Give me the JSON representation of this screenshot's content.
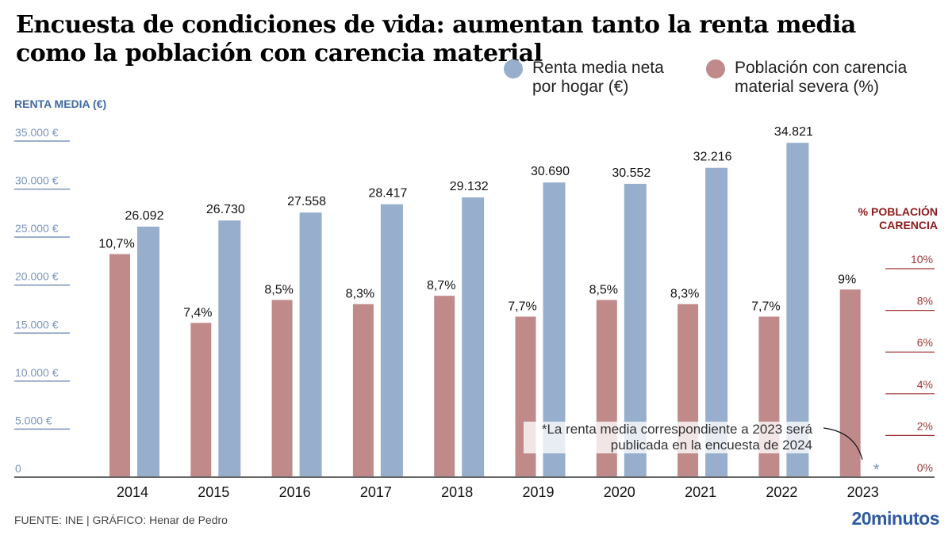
{
  "title": "Encuesta de condiciones de vida: aumentan tanto la renta media como la población con carencia material",
  "legend": [
    {
      "label_line1": "Renta media neta",
      "label_line2": "por hogar (€)",
      "color": "#97afcc"
    },
    {
      "label_line1": "Población con carencia",
      "label_line2": "material severa (%)",
      "color": "#c08a8b"
    }
  ],
  "axis_left_title": "RENTA MEDIA (€)",
  "axis_right_title_line1": "% POBLACIÓN",
  "axis_right_title_line2": "CARENCIA",
  "note": "*La renta media correspondiente a 2023 será publicada en la encuesta de 2024",
  "note_marker": "*",
  "footer": "FUENTE: INE  |  GRÁFICO: Henar de Pedro",
  "brand": "20minutos",
  "chart_data": {
    "type": "bar",
    "title": "Encuesta de condiciones de vida: aumentan tanto la renta media como la población con carencia material",
    "categories": [
      "2014",
      "2015",
      "2016",
      "2017",
      "2018",
      "2019",
      "2020",
      "2021",
      "2022",
      "2023"
    ],
    "series": [
      {
        "name": "Población con carencia material severa (%)",
        "axis": "right",
        "color": "#c08a8b",
        "values": [
          10.7,
          7.4,
          8.5,
          8.3,
          8.7,
          7.7,
          8.5,
          8.3,
          7.7,
          9
        ],
        "labels": [
          "10,7%",
          "7,4%",
          "8,5%",
          "8,3%",
          "8,7%",
          "7,7%",
          "8,5%",
          "8,3%",
          "7,7%",
          "9%"
        ]
      },
      {
        "name": "Renta media neta por hogar (€)",
        "axis": "left",
        "color": "#97afcc",
        "values": [
          26092,
          26730,
          27558,
          28417,
          29132,
          30690,
          30552,
          32216,
          34821,
          null
        ],
        "labels": [
          "26.092",
          "26.730",
          "27.558",
          "28.417",
          "29.132",
          "30.690",
          "30.552",
          "32.216",
          "34.821",
          "*"
        ]
      }
    ],
    "y_left": {
      "label": "RENTA MEDIA (€)",
      "range": [
        0,
        35000
      ],
      "ticks": [
        0,
        5000,
        10000,
        15000,
        20000,
        25000,
        30000,
        35000
      ],
      "tick_labels": [
        "0",
        "5.000 €",
        "10.000 €",
        "15.000 €",
        "20.000 €",
        "25.000 €",
        "30.000 €",
        "35.000 €"
      ],
      "color": "#7a95bd"
    },
    "y_right": {
      "label": "% POBLACIÓN CARENCIA",
      "range": [
        0,
        10
      ],
      "ticks": [
        0,
        2,
        4,
        6,
        8,
        10
      ],
      "tick_labels": [
        "0%",
        "2%",
        "4%",
        "6%",
        "8%",
        "10%"
      ],
      "color": "#a23434"
    },
    "xlabel": "",
    "grid": false,
    "legend_position": "top-right"
  }
}
